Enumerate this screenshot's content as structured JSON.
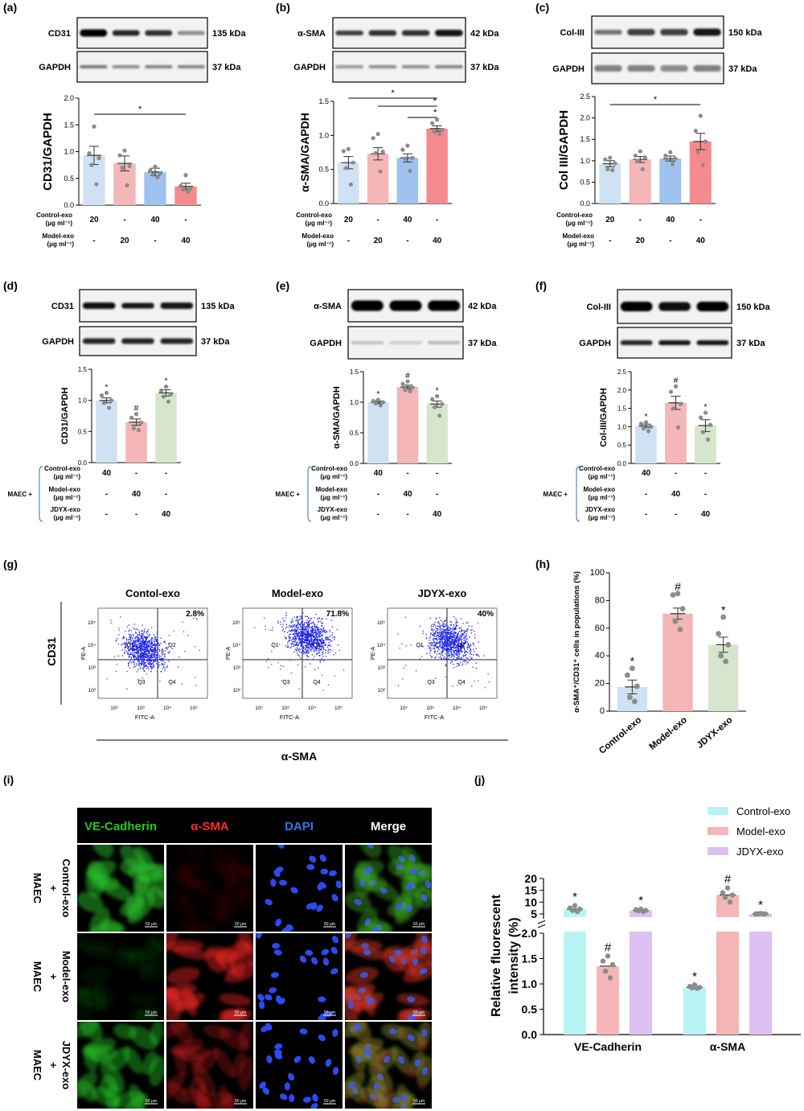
{
  "colors": {
    "control": "#cfe2f3",
    "model": "#f4b6b6",
    "model_strong": "#f58a8e",
    "blue": "#9ec3ef",
    "jdyx": "#d6e6cc",
    "cyan": "#b8f4f4",
    "purple": "#dcc0f2",
    "dot": "#8c8c8c",
    "flow_dot": "#1d22e6",
    "ve_green": "#1ecc1e",
    "sma_red": "#ff2a2a",
    "dapi_blue": "#2b7ae6"
  },
  "blots": [
    {
      "panel": "(a)",
      "top": "CD31",
      "top_kda": "135 kDa",
      "bottom": "GAPDH",
      "bottom_kda": "37 kDa"
    },
    {
      "panel": "(b)",
      "top": "α-SMA",
      "top_kda": "42 kDa",
      "bottom": "GAPDH",
      "bottom_kda": "37 kDa"
    },
    {
      "panel": "(c)",
      "top": "Col-III",
      "top_kda": "150 kDa",
      "bottom": "GAPDH",
      "bottom_kda": "37 kDa"
    },
    {
      "panel": "(d)",
      "top": "CD31",
      "top_kda": "135 kDa",
      "bottom": "GAPDH",
      "bottom_kda": "37 kDa"
    },
    {
      "panel": "(e)",
      "top": "α-SMA",
      "top_kda": "42 kDa",
      "bottom": "GAPDH",
      "bottom_kda": "37 kDa"
    },
    {
      "panel": "(f)",
      "top": "Col-III",
      "top_kda": "150 kDa",
      "bottom": "GAPDH",
      "bottom_kda": "37 kDa"
    }
  ],
  "row1_dose": {
    "control_label": "Control-exo",
    "model_label": "Model-exo",
    "unit": "(μg ml⁻¹)",
    "control": [
      "20",
      "-",
      "40",
      "-"
    ],
    "model": [
      "-",
      "20",
      "-",
      "40"
    ]
  },
  "row2_dose": {
    "maec": "MAEC +",
    "control_label": "Control-exo",
    "model_label": "Model-exo",
    "jdyx_label": "JDYX-exo",
    "unit": "(μg ml⁻¹)",
    "control": [
      "40",
      "-",
      "-"
    ],
    "model": [
      "-",
      "40",
      "-"
    ],
    "jdyx": [
      "-",
      "-",
      "40"
    ]
  },
  "chart_data": [
    {
      "panel": "(a)",
      "type": "bar",
      "ylabel": "CD31/GAPDH",
      "ylim": [
        0,
        2.0
      ],
      "yticks": [
        "0.0",
        "0.5",
        "1.0",
        "1.5",
        "2.0"
      ],
      "categories": [
        "Control-exo 20",
        "Model-exo 20",
        "Control-exo 40",
        "Model-exo 40"
      ],
      "values": [
        0.93,
        0.78,
        0.62,
        0.35
      ],
      "sem": [
        0.17,
        0.14,
        0.07,
        0.06
      ],
      "points": [
        [
          1.47,
          0.97,
          0.88,
          0.75,
          0.39
        ],
        [
          1.02,
          0.93,
          0.73,
          0.7,
          0.37
        ],
        [
          0.72,
          0.65,
          0.59,
          0.57,
          0.52
        ],
        [
          0.56,
          0.36,
          0.31,
          0.29,
          0.25
        ]
      ],
      "significance": [
        {
          "from": 0,
          "to": 3,
          "label": "*"
        }
      ]
    },
    {
      "panel": "(b)",
      "type": "bar",
      "ylabel": "α-SMA/GAPDH",
      "ylim": [
        0,
        1.5
      ],
      "yticks": [
        "0.0",
        "0.5",
        "1.0",
        "1.5"
      ],
      "categories": [
        "Control-exo 20",
        "Model-exo 20",
        "Control-exo 40",
        "Model-exo 40"
      ],
      "values": [
        0.6,
        0.73,
        0.67,
        1.1
      ],
      "sem": [
        0.09,
        0.09,
        0.06,
        0.04
      ],
      "points": [
        [
          0.8,
          0.77,
          0.6,
          0.52,
          0.28
        ],
        [
          1.02,
          0.96,
          0.76,
          0.74,
          0.47
        ],
        [
          0.85,
          0.79,
          0.67,
          0.66,
          0.48
        ],
        [
          1.23,
          1.18,
          1.08,
          1.05,
          1.02
        ]
      ],
      "significance": [
        {
          "from": 0,
          "to": 3,
          "label": "*"
        },
        {
          "from": 1,
          "to": 3,
          "label": "*"
        },
        {
          "from": 2,
          "to": 3,
          "label": "*"
        }
      ]
    },
    {
      "panel": "(c)",
      "type": "bar",
      "ylabel": "Col III/GAPDH",
      "ylim": [
        0,
        2.5
      ],
      "yticks": [
        "0.0",
        "0.5",
        "1.0",
        "1.5",
        "2.0",
        "2.5"
      ],
      "categories": [
        "Control-exo 20",
        "Model-exo 20",
        "Control-exo 40",
        "Model-exo 40"
      ],
      "values": [
        0.93,
        1.03,
        1.05,
        1.45
      ],
      "sem": [
        0.07,
        0.07,
        0.06,
        0.19
      ],
      "points": [
        [
          1.07,
          1.03,
          0.94,
          0.8,
          0.78
        ],
        [
          1.22,
          1.12,
          1.08,
          1.0,
          0.8
        ],
        [
          1.2,
          1.12,
          1.05,
          1.03,
          0.92
        ],
        [
          2.05,
          1.7,
          1.45,
          1.2,
          0.9
        ]
      ],
      "significance": [
        {
          "from": 0,
          "to": 3,
          "label": "*"
        }
      ]
    },
    {
      "panel": "(d)",
      "type": "bar",
      "ylabel": "CD31/GAPDH",
      "ylim": [
        0,
        1.5
      ],
      "yticks": [
        "0.0",
        "0.5",
        "1.0",
        "1.5"
      ],
      "categories": [
        "Control-exo",
        "Model-exo",
        "JDYX-exo"
      ],
      "values": [
        1.0,
        0.65,
        1.12
      ],
      "sem": [
        0.04,
        0.05,
        0.05
      ],
      "points": [
        [
          1.12,
          1.08,
          1.0,
          0.96,
          0.88
        ],
        [
          0.78,
          0.72,
          0.64,
          0.55,
          0.52
        ],
        [
          1.22,
          1.16,
          1.1,
          1.06,
          0.98
        ]
      ],
      "marks": [
        "*",
        "#",
        "*"
      ]
    },
    {
      "panel": "(e)",
      "type": "bar",
      "ylabel": "α-SMA/GAPDH",
      "ylim": [
        0,
        1.5
      ],
      "yticks": [
        "0.0",
        "0.5",
        "1.0",
        "1.5"
      ],
      "categories": [
        "Control-exo",
        "Model-exo",
        "JDYX-exo"
      ],
      "values": [
        1.0,
        1.25,
        0.97
      ],
      "sem": [
        0.02,
        0.03,
        0.05
      ],
      "points": [
        [
          1.04,
          1.02,
          1.0,
          0.98,
          0.95
        ],
        [
          1.34,
          1.3,
          1.24,
          1.2,
          1.18
        ],
        [
          1.1,
          1.05,
          0.97,
          0.92,
          0.78
        ]
      ],
      "marks": [
        "*",
        "#",
        "*"
      ]
    },
    {
      "panel": "(f)",
      "type": "bar",
      "ylabel": "Col-III/GAPDH",
      "ylim": [
        0,
        2.5
      ],
      "yticks": [
        "0.0",
        "0.5",
        "1.0",
        "1.5",
        "2.0",
        "2.5"
      ],
      "categories": [
        "Control-exo",
        "Model-exo",
        "JDYX-exo"
      ],
      "values": [
        1.02,
        1.65,
        1.03
      ],
      "sem": [
        0.05,
        0.18,
        0.16
      ],
      "points": [
        [
          1.12,
          1.08,
          1.0,
          0.95,
          0.88
        ],
        [
          2.1,
          1.95,
          1.62,
          1.5,
          0.98
        ],
        [
          1.38,
          1.25,
          1.05,
          0.85,
          0.65
        ]
      ],
      "marks": [
        "*",
        "#",
        "*"
      ]
    },
    {
      "panel": "(h)",
      "type": "bar",
      "ylabel": "α-SMA⁺/CD31⁺ cells in populations (%)",
      "ylim": [
        0,
        100
      ],
      "yticks": [
        "0",
        "20",
        "40",
        "60",
        "80",
        "100"
      ],
      "categories": [
        "Control-exo",
        "Model-exo",
        "JDYX-exo"
      ],
      "values": [
        17.5,
        70.5,
        48.0
      ],
      "sem": [
        5.0,
        4.0,
        5.5
      ],
      "points": [
        [
          31,
          26,
          18,
          10,
          7
        ],
        [
          85,
          84,
          74,
          65,
          59
        ],
        [
          68,
          56,
          48,
          40,
          36
        ]
      ],
      "marks": [
        "*",
        "#",
        "*"
      ]
    },
    {
      "panel": "(j)",
      "type": "bar",
      "ylabel": "Relative fluorescent intensity (%)",
      "broken_axis": true,
      "lower_ylim": [
        0,
        2.0
      ],
      "lower_yticks": [
        "0.0",
        "0.5",
        "1.0",
        "1.5",
        "2.0"
      ],
      "upper_yticks": [
        "5",
        "10",
        "15",
        "20"
      ],
      "groups": [
        "VE-Cadherin",
        "α-SMA"
      ],
      "series": [
        {
          "name": "Control-exo",
          "values": [
            7.0,
            0.93
          ],
          "points": [
            [
              8.5,
              7.5,
              7.0,
              6.5,
              6.0
            ],
            [
              0.98,
              0.95,
              0.93,
              0.92,
              0.91
            ]
          ],
          "marks": [
            "*",
            "*"
          ]
        },
        {
          "name": "Model-exo",
          "values": [
            1.35,
            13.0
          ],
          "points": [
            [
              1.55,
              1.45,
              1.38,
              1.25,
              1.12
            ],
            [
              16,
              14,
              13,
              12,
              10
            ]
          ],
          "marks": [
            "#",
            "#"
          ]
        },
        {
          "name": "JDYX-exo",
          "values": [
            6.5,
            4.5
          ],
          "points": [
            [
              7.0,
              6.8,
              6.5,
              6.3,
              6.0
            ],
            [
              5.2,
              4.8,
              4.5,
              4.3,
              4.0
            ]
          ],
          "marks": [
            "*",
            "*"
          ]
        }
      ]
    }
  ],
  "flow": {
    "panel": "(g)",
    "titles": [
      "Contol-exo",
      "Model-exo",
      "JDYX-exo"
    ],
    "percents": [
      "2.8%",
      "71.8%",
      "40%"
    ],
    "row_label": "CD31",
    "col_label": "α-SMA",
    "y_axis": "PE-A",
    "x_axis": "FITC-A",
    "quadrants": [
      "Q1",
      "Q2",
      "Q3",
      "Q4"
    ],
    "ticks": [
      "10²",
      "10³",
      "10⁴",
      "10⁵"
    ]
  },
  "micro": {
    "panel": "(i)",
    "headers": [
      "VE-Cadherin",
      "α-SMA",
      "DAPI",
      "Merge"
    ],
    "rows": [
      {
        "maec": "MAEC",
        "plus": "+",
        "group": "Control-exo"
      },
      {
        "maec": "MAEC",
        "plus": "+",
        "group": "Model-exo"
      },
      {
        "maec": "MAEC",
        "plus": "+",
        "group": "JDYX-exo"
      }
    ],
    "scale": "50 μm"
  }
}
